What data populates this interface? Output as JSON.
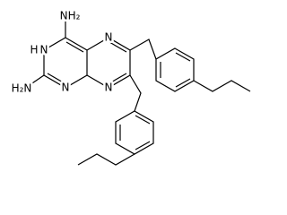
{
  "atom_labels": [
    "NH₂",
    "H",
    "N",
    "H₂N",
    "N",
    "N",
    "N"
  ]
}
